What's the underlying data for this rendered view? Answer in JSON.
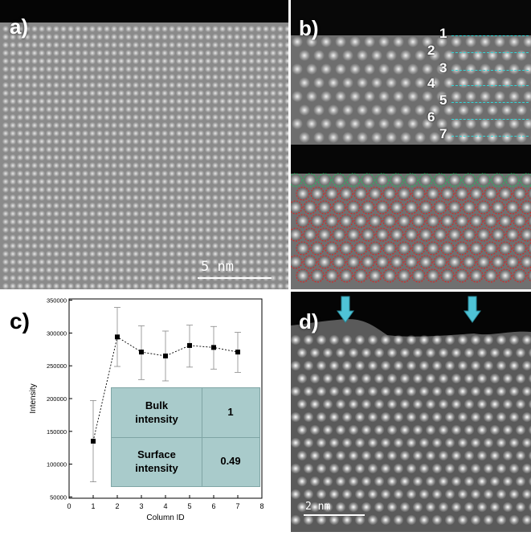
{
  "panels": {
    "a": {
      "label": "a)",
      "scalebar": "5 nm"
    },
    "b": {
      "label": "b)",
      "row_labels": [
        "1",
        "2",
        "3",
        "4",
        "5",
        "6",
        "7"
      ]
    },
    "c": {
      "label": "c)"
    },
    "d": {
      "label": "d)",
      "scalebar": "2 nm"
    }
  },
  "colors": {
    "dashed_lines": "#33d6d6",
    "overlay_bulk": "#e02020",
    "overlay_surface": "#20c060",
    "arrow": "#4fc3d6",
    "table_fill": "#a9cbcb"
  },
  "chart_data": {
    "type": "scatter",
    "xlabel": "Column ID",
    "ylabel": "Intensity",
    "xlim": [
      0,
      8
    ],
    "ylim": [
      48000,
      352000
    ],
    "xticks": [
      "0",
      "1",
      "2",
      "3",
      "4",
      "5",
      "6",
      "7",
      "8"
    ],
    "yticks": [
      "50000",
      "100000",
      "150000",
      "200000",
      "250000",
      "300000",
      "350000"
    ],
    "ytick_values": [
      50000,
      100000,
      150000,
      200000,
      250000,
      300000,
      350000
    ],
    "x": [
      1,
      2,
      3,
      4,
      5,
      6,
      7
    ],
    "y": [
      135000,
      294000,
      271000,
      265000,
      281000,
      278000,
      271000
    ],
    "err_low": [
      73000,
      249000,
      229000,
      227000,
      248000,
      245000,
      240000
    ],
    "err_high": [
      197000,
      339000,
      311000,
      303000,
      312000,
      310000,
      301000
    ],
    "marker": "square",
    "line_style": "dotted",
    "table": {
      "rows": [
        {
          "label": "Bulk\nintensity",
          "value": "1"
        },
        {
          "label": "Surface\nintensity",
          "value": "0.49"
        }
      ]
    }
  }
}
